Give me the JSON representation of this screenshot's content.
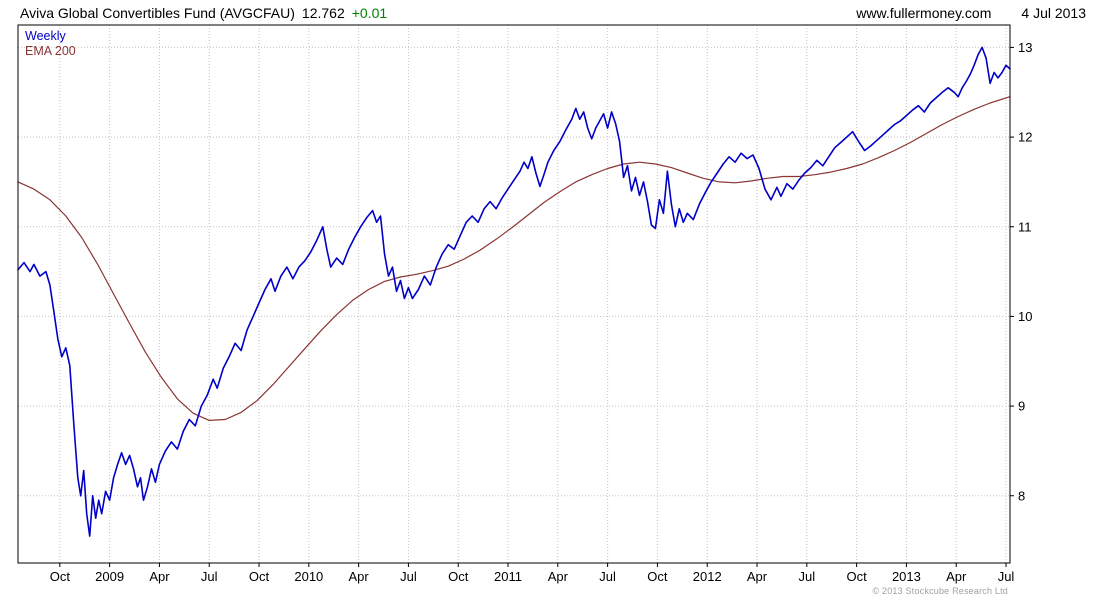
{
  "header": {
    "fund_name": "Aviva Global Convertibles Fund (AVGCFAU)",
    "price": "12.762",
    "change": "+0.01",
    "website": "www.fullermoney.com",
    "date": "4 Jul 2013"
  },
  "footer": {
    "copyright": "© 2013 Stockcube Research Ltd"
  },
  "colors": {
    "price_line": "#0000c8",
    "ema_line": "#8b3434",
    "change_positive": "#008000",
    "grid": "#c4c4c4",
    "border": "#000000",
    "text": "#000000",
    "copyright": "#a0a0a0"
  },
  "chart_data": {
    "type": "line",
    "title": "Aviva Global Convertibles Fund (AVGCFAU)",
    "timeframe": "Weekly",
    "x_unit": "decimal_year",
    "x_range": [
      2008.54,
      2013.52
    ],
    "y_range": [
      7.25,
      13.25
    ],
    "y_ticks": [
      8,
      9,
      10,
      11,
      12,
      13
    ],
    "grid": "dotted",
    "legend_position": "top-left",
    "x_ticks": [
      {
        "label": "Oct",
        "x": 2008.75
      },
      {
        "label": "2009",
        "x": 2009.0
      },
      {
        "label": "Apr",
        "x": 2009.25
      },
      {
        "label": "Jul",
        "x": 2009.5
      },
      {
        "label": "Oct",
        "x": 2009.75
      },
      {
        "label": "2010",
        "x": 2010.0
      },
      {
        "label": "Apr",
        "x": 2010.25
      },
      {
        "label": "Jul",
        "x": 2010.5
      },
      {
        "label": "Oct",
        "x": 2010.75
      },
      {
        "label": "2011",
        "x": 2011.0
      },
      {
        "label": "Apr",
        "x": 2011.25
      },
      {
        "label": "Jul",
        "x": 2011.5
      },
      {
        "label": "Oct",
        "x": 2011.75
      },
      {
        "label": "2012",
        "x": 2012.0
      },
      {
        "label": "Apr",
        "x": 2012.25
      },
      {
        "label": "Jul",
        "x": 2012.5
      },
      {
        "label": "Oct",
        "x": 2012.75
      },
      {
        "label": "2013",
        "x": 2013.0
      },
      {
        "label": "Apr",
        "x": 2013.25
      },
      {
        "label": "Jul",
        "x": 2013.5
      }
    ],
    "series": [
      {
        "name": "Weekly",
        "color": "#0000c8",
        "width": 1.6,
        "points": [
          [
            2008.54,
            10.52
          ],
          [
            2008.57,
            10.6
          ],
          [
            2008.6,
            10.5
          ],
          [
            2008.62,
            10.58
          ],
          [
            2008.65,
            10.45
          ],
          [
            2008.68,
            10.5
          ],
          [
            2008.7,
            10.35
          ],
          [
            2008.72,
            10.05
          ],
          [
            2008.74,
            9.75
          ],
          [
            2008.76,
            9.55
          ],
          [
            2008.78,
            9.65
          ],
          [
            2008.8,
            9.45
          ],
          [
            2008.82,
            8.8
          ],
          [
            2008.84,
            8.2
          ],
          [
            2008.855,
            8.0
          ],
          [
            2008.87,
            8.28
          ],
          [
            2008.885,
            7.8
          ],
          [
            2008.9,
            7.55
          ],
          [
            2008.915,
            8.0
          ],
          [
            2008.93,
            7.75
          ],
          [
            2008.945,
            7.95
          ],
          [
            2008.96,
            7.8
          ],
          [
            2008.98,
            8.05
          ],
          [
            2009.0,
            7.95
          ],
          [
            2009.02,
            8.2
          ],
          [
            2009.04,
            8.35
          ],
          [
            2009.06,
            8.48
          ],
          [
            2009.08,
            8.35
          ],
          [
            2009.1,
            8.45
          ],
          [
            2009.12,
            8.3
          ],
          [
            2009.14,
            8.1
          ],
          [
            2009.155,
            8.2
          ],
          [
            2009.17,
            7.95
          ],
          [
            2009.19,
            8.1
          ],
          [
            2009.21,
            8.3
          ],
          [
            2009.23,
            8.15
          ],
          [
            2009.25,
            8.35
          ],
          [
            2009.28,
            8.5
          ],
          [
            2009.31,
            8.6
          ],
          [
            2009.34,
            8.52
          ],
          [
            2009.37,
            8.72
          ],
          [
            2009.4,
            8.85
          ],
          [
            2009.43,
            8.78
          ],
          [
            2009.46,
            9.0
          ],
          [
            2009.49,
            9.12
          ],
          [
            2009.52,
            9.3
          ],
          [
            2009.54,
            9.2
          ],
          [
            2009.57,
            9.42
          ],
          [
            2009.6,
            9.55
          ],
          [
            2009.63,
            9.7
          ],
          [
            2009.66,
            9.62
          ],
          [
            2009.69,
            9.85
          ],
          [
            2009.72,
            10.0
          ],
          [
            2009.75,
            10.15
          ],
          [
            2009.78,
            10.3
          ],
          [
            2009.81,
            10.42
          ],
          [
            2009.83,
            10.28
          ],
          [
            2009.86,
            10.45
          ],
          [
            2009.89,
            10.55
          ],
          [
            2009.92,
            10.42
          ],
          [
            2009.95,
            10.55
          ],
          [
            2009.98,
            10.62
          ],
          [
            2010.01,
            10.72
          ],
          [
            2010.04,
            10.85
          ],
          [
            2010.07,
            11.0
          ],
          [
            2010.09,
            10.75
          ],
          [
            2010.11,
            10.55
          ],
          [
            2010.14,
            10.65
          ],
          [
            2010.17,
            10.58
          ],
          [
            2010.2,
            10.75
          ],
          [
            2010.23,
            10.88
          ],
          [
            2010.26,
            11.0
          ],
          [
            2010.29,
            11.1
          ],
          [
            2010.32,
            11.18
          ],
          [
            2010.34,
            11.05
          ],
          [
            2010.36,
            11.12
          ],
          [
            2010.38,
            10.7
          ],
          [
            2010.4,
            10.45
          ],
          [
            2010.42,
            10.55
          ],
          [
            2010.44,
            10.28
          ],
          [
            2010.46,
            10.4
          ],
          [
            2010.48,
            10.2
          ],
          [
            2010.5,
            10.32
          ],
          [
            2010.52,
            10.2
          ],
          [
            2010.55,
            10.3
          ],
          [
            2010.58,
            10.45
          ],
          [
            2010.61,
            10.35
          ],
          [
            2010.64,
            10.55
          ],
          [
            2010.67,
            10.7
          ],
          [
            2010.7,
            10.8
          ],
          [
            2010.73,
            10.75
          ],
          [
            2010.76,
            10.9
          ],
          [
            2010.79,
            11.05
          ],
          [
            2010.82,
            11.12
          ],
          [
            2010.85,
            11.05
          ],
          [
            2010.88,
            11.2
          ],
          [
            2010.91,
            11.28
          ],
          [
            2010.94,
            11.2
          ],
          [
            2010.97,
            11.32
          ],
          [
            2011.0,
            11.42
          ],
          [
            2011.03,
            11.52
          ],
          [
            2011.06,
            11.62
          ],
          [
            2011.08,
            11.72
          ],
          [
            2011.1,
            11.65
          ],
          [
            2011.12,
            11.78
          ],
          [
            2011.14,
            11.6
          ],
          [
            2011.16,
            11.45
          ],
          [
            2011.18,
            11.58
          ],
          [
            2011.2,
            11.72
          ],
          [
            2011.23,
            11.85
          ],
          [
            2011.26,
            11.95
          ],
          [
            2011.29,
            12.08
          ],
          [
            2011.32,
            12.2
          ],
          [
            2011.34,
            12.32
          ],
          [
            2011.36,
            12.2
          ],
          [
            2011.38,
            12.28
          ],
          [
            2011.4,
            12.1
          ],
          [
            2011.42,
            11.98
          ],
          [
            2011.44,
            12.1
          ],
          [
            2011.46,
            12.18
          ],
          [
            2011.48,
            12.26
          ],
          [
            2011.5,
            12.1
          ],
          [
            2011.52,
            12.28
          ],
          [
            2011.54,
            12.15
          ],
          [
            2011.56,
            11.95
          ],
          [
            2011.58,
            11.55
          ],
          [
            2011.6,
            11.68
          ],
          [
            2011.62,
            11.4
          ],
          [
            2011.64,
            11.55
          ],
          [
            2011.66,
            11.35
          ],
          [
            2011.68,
            11.5
          ],
          [
            2011.7,
            11.28
          ],
          [
            2011.72,
            11.02
          ],
          [
            2011.74,
            10.98
          ],
          [
            2011.76,
            11.3
          ],
          [
            2011.78,
            11.15
          ],
          [
            2011.8,
            11.62
          ],
          [
            2011.82,
            11.25
          ],
          [
            2011.84,
            11.0
          ],
          [
            2011.86,
            11.2
          ],
          [
            2011.88,
            11.05
          ],
          [
            2011.9,
            11.15
          ],
          [
            2011.93,
            11.08
          ],
          [
            2011.96,
            11.25
          ],
          [
            2011.99,
            11.38
          ],
          [
            2012.02,
            11.5
          ],
          [
            2012.05,
            11.6
          ],
          [
            2012.08,
            11.7
          ],
          [
            2012.11,
            11.78
          ],
          [
            2012.14,
            11.72
          ],
          [
            2012.17,
            11.82
          ],
          [
            2012.2,
            11.76
          ],
          [
            2012.23,
            11.8
          ],
          [
            2012.26,
            11.65
          ],
          [
            2012.29,
            11.42
          ],
          [
            2012.32,
            11.3
          ],
          [
            2012.35,
            11.44
          ],
          [
            2012.37,
            11.34
          ],
          [
            2012.4,
            11.48
          ],
          [
            2012.43,
            11.42
          ],
          [
            2012.46,
            11.52
          ],
          [
            2012.49,
            11.6
          ],
          [
            2012.52,
            11.66
          ],
          [
            2012.55,
            11.74
          ],
          [
            2012.58,
            11.68
          ],
          [
            2012.61,
            11.78
          ],
          [
            2012.64,
            11.88
          ],
          [
            2012.67,
            11.94
          ],
          [
            2012.7,
            12.0
          ],
          [
            2012.73,
            12.06
          ],
          [
            2012.76,
            11.95
          ],
          [
            2012.79,
            11.85
          ],
          [
            2012.82,
            11.9
          ],
          [
            2012.85,
            11.96
          ],
          [
            2012.88,
            12.02
          ],
          [
            2012.91,
            12.08
          ],
          [
            2012.94,
            12.14
          ],
          [
            2012.97,
            12.18
          ],
          [
            2013.0,
            12.24
          ],
          [
            2013.03,
            12.3
          ],
          [
            2013.06,
            12.35
          ],
          [
            2013.09,
            12.28
          ],
          [
            2013.12,
            12.38
          ],
          [
            2013.15,
            12.44
          ],
          [
            2013.18,
            12.5
          ],
          [
            2013.21,
            12.55
          ],
          [
            2013.24,
            12.5
          ],
          [
            2013.26,
            12.45
          ],
          [
            2013.28,
            12.55
          ],
          [
            2013.3,
            12.62
          ],
          [
            2013.32,
            12.7
          ],
          [
            2013.34,
            12.8
          ],
          [
            2013.36,
            12.92
          ],
          [
            2013.38,
            13.0
          ],
          [
            2013.4,
            12.88
          ],
          [
            2013.42,
            12.6
          ],
          [
            2013.44,
            12.72
          ],
          [
            2013.46,
            12.66
          ],
          [
            2013.48,
            12.72
          ],
          [
            2013.5,
            12.8
          ],
          [
            2013.52,
            12.76
          ]
        ]
      },
      {
        "name": "EMA 200",
        "color": "#8b3434",
        "width": 1.2,
        "points": [
          [
            2008.54,
            11.5
          ],
          [
            2008.62,
            11.42
          ],
          [
            2008.7,
            11.3
          ],
          [
            2008.78,
            11.12
          ],
          [
            2008.86,
            10.88
          ],
          [
            2008.94,
            10.58
          ],
          [
            2009.02,
            10.25
          ],
          [
            2009.1,
            9.92
          ],
          [
            2009.18,
            9.6
          ],
          [
            2009.26,
            9.32
          ],
          [
            2009.34,
            9.08
          ],
          [
            2009.42,
            8.92
          ],
          [
            2009.5,
            8.84
          ],
          [
            2009.58,
            8.85
          ],
          [
            2009.66,
            8.93
          ],
          [
            2009.74,
            9.06
          ],
          [
            2009.82,
            9.24
          ],
          [
            2009.9,
            9.44
          ],
          [
            2009.98,
            9.64
          ],
          [
            2010.06,
            9.84
          ],
          [
            2010.14,
            10.02
          ],
          [
            2010.22,
            10.18
          ],
          [
            2010.3,
            10.3
          ],
          [
            2010.38,
            10.39
          ],
          [
            2010.46,
            10.44
          ],
          [
            2010.54,
            10.47
          ],
          [
            2010.62,
            10.51
          ],
          [
            2010.7,
            10.56
          ],
          [
            2010.78,
            10.64
          ],
          [
            2010.86,
            10.74
          ],
          [
            2010.94,
            10.86
          ],
          [
            2011.02,
            10.99
          ],
          [
            2011.1,
            11.13
          ],
          [
            2011.18,
            11.27
          ],
          [
            2011.26,
            11.39
          ],
          [
            2011.34,
            11.5
          ],
          [
            2011.42,
            11.58
          ],
          [
            2011.5,
            11.65
          ],
          [
            2011.58,
            11.7
          ],
          [
            2011.66,
            11.72
          ],
          [
            2011.74,
            11.7
          ],
          [
            2011.82,
            11.66
          ],
          [
            2011.9,
            11.6
          ],
          [
            2011.98,
            11.54
          ],
          [
            2012.06,
            11.5
          ],
          [
            2012.14,
            11.49
          ],
          [
            2012.22,
            11.51
          ],
          [
            2012.3,
            11.54
          ],
          [
            2012.38,
            11.56
          ],
          [
            2012.46,
            11.56
          ],
          [
            2012.54,
            11.58
          ],
          [
            2012.62,
            11.61
          ],
          [
            2012.7,
            11.65
          ],
          [
            2012.78,
            11.7
          ],
          [
            2012.86,
            11.77
          ],
          [
            2012.94,
            11.85
          ],
          [
            2013.02,
            11.94
          ],
          [
            2013.1,
            12.04
          ],
          [
            2013.18,
            12.14
          ],
          [
            2013.26,
            12.23
          ],
          [
            2013.34,
            12.31
          ],
          [
            2013.42,
            12.38
          ],
          [
            2013.52,
            12.45
          ]
        ]
      }
    ]
  }
}
